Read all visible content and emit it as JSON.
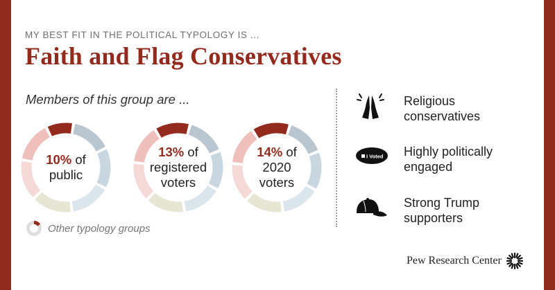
{
  "kicker": "MY BEST FIT IN THE POLITICAL TYPOLOGY IS ...",
  "title": "Faith and Flag Conservatives",
  "subhead": "Members of this group are ...",
  "donuts": [
    {
      "pct": "10%",
      "line1_rest": " of",
      "line2": "public",
      "line3": "",
      "share": 10
    },
    {
      "pct": "13%",
      "line1_rest": " of",
      "line2": "registered",
      "line3": "voters",
      "share": 13
    },
    {
      "pct": "14%",
      "line1_rest": " of",
      "line2": "2020",
      "line3": "voters",
      "share": 14
    }
  ],
  "legend": {
    "label": "Other typology groups"
  },
  "traits": [
    {
      "icon": "praying-hands-icon",
      "line1": "Religious",
      "line2": "conservatives"
    },
    {
      "icon": "i-voted-sticker-icon",
      "line1": "Highly politically",
      "line2": "engaged",
      "sticker_text": "I Voted"
    },
    {
      "icon": "baseball-cap-icon",
      "line1": "Strong Trump",
      "line2": "supporters"
    }
  ],
  "footer": {
    "brand": "Pew Research Center"
  },
  "colors": {
    "brand_red": "#922b1e",
    "background_red": "#8f2a1d",
    "other_groups": [
      "#b9c5cf",
      "#c8d6e0",
      "#dbe5ec",
      "#e7e6d5",
      "#f4d9d6",
      "#eebfbb"
    ]
  }
}
